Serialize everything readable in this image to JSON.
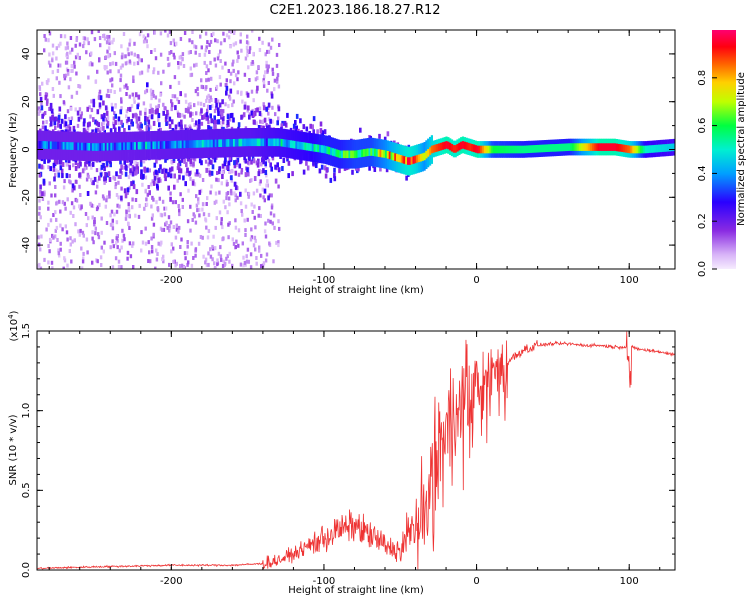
{
  "title": "C2E1.2023.186.18.27.R12",
  "chart_data": [
    {
      "type": "heatmap",
      "xlabel": "Height of straight line (km)",
      "ylabel": "Frequency (Hz)",
      "xlim": [
        -288,
        130
      ],
      "ylim": [
        -50,
        50
      ],
      "xticks": [
        -200,
        -100,
        0,
        100
      ],
      "yticks": [
        -40,
        -20,
        0,
        20,
        40
      ],
      "colorbar": {
        "label": "Normalized spectral amplitude",
        "range": [
          0.0,
          1.0
        ],
        "ticks": [
          "0.0",
          "0.2",
          "0.4",
          "0.6",
          "0.8"
        ],
        "colormap": [
          "#ffffff",
          "#d8b4f8",
          "#8a2be2",
          "#1e00ff",
          "#00c8ff",
          "#00ff66",
          "#ffff00",
          "#ff7f00",
          "#ff0000",
          "#ff0066"
        ]
      },
      "ridge": {
        "x": [
          -288,
          -250,
          -200,
          -150,
          -130,
          -110,
          -100,
          -90,
          -80,
          -70,
          -60,
          -50,
          -45,
          -40,
          -35,
          -30,
          -25,
          -20,
          -15,
          -10,
          -5,
          0,
          10,
          30,
          60,
          80,
          90,
          100,
          110,
          130
        ],
        "frequency": [
          2,
          1,
          2,
          3,
          3,
          1,
          0,
          -2,
          -2,
          -1,
          -2,
          -4,
          -5,
          -4,
          -3,
          0,
          1,
          2,
          0,
          2,
          1,
          0,
          0,
          0,
          1,
          1,
          1,
          0,
          0,
          1
        ],
        "amplitude": [
          0.35,
          0.35,
          0.38,
          0.4,
          0.45,
          0.5,
          0.55,
          0.55,
          0.6,
          0.6,
          0.7,
          0.85,
          0.9,
          0.85,
          0.7,
          0.85,
          0.9,
          0.95,
          0.9,
          0.95,
          0.9,
          0.95,
          0.6,
          0.55,
          0.55,
          0.95,
          0.95,
          0.85,
          0.5,
          0.45
        ]
      }
    },
    {
      "type": "line",
      "xlabel": "Height of straight line (km)",
      "ylabel": "SNR (10 * v/v)",
      "multiplier": "(x10",
      "multiplier_exp": "4",
      "multiplier_close": ")",
      "xlim": [
        -288,
        130
      ],
      "ylim": [
        0,
        1.5
      ],
      "xticks": [
        -200,
        -100,
        0,
        100
      ],
      "yticks": [
        "0.0",
        "0.5",
        "1.0",
        "1.5"
      ],
      "color": "#ee3333",
      "series": [
        {
          "x": [
            -288,
            -250,
            -200,
            -180,
            -160,
            -140,
            -130,
            -120,
            -110,
            -100,
            -90,
            -80,
            -70,
            -60,
            -50,
            -45,
            -40,
            -35,
            -30,
            -25,
            -20,
            -15,
            -10,
            -5,
            0,
            5,
            10,
            20,
            30,
            40,
            50,
            60,
            70,
            80,
            90,
            95,
            100,
            105,
            110,
            120,
            130
          ],
          "values": [
            0.01,
            0.02,
            0.03,
            0.03,
            0.03,
            0.04,
            0.06,
            0.1,
            0.15,
            0.2,
            0.25,
            0.28,
            0.22,
            0.15,
            0.12,
            0.2,
            0.3,
            0.3,
            0.55,
            0.75,
            0.95,
            1.0,
            1.1,
            1.1,
            1.15,
            1.2,
            1.25,
            1.3,
            1.38,
            1.41,
            1.42,
            1.42,
            1.41,
            1.41,
            1.4,
            1.4,
            1.4,
            1.39,
            1.38,
            1.37,
            1.35
          ]
        }
      ]
    }
  ]
}
